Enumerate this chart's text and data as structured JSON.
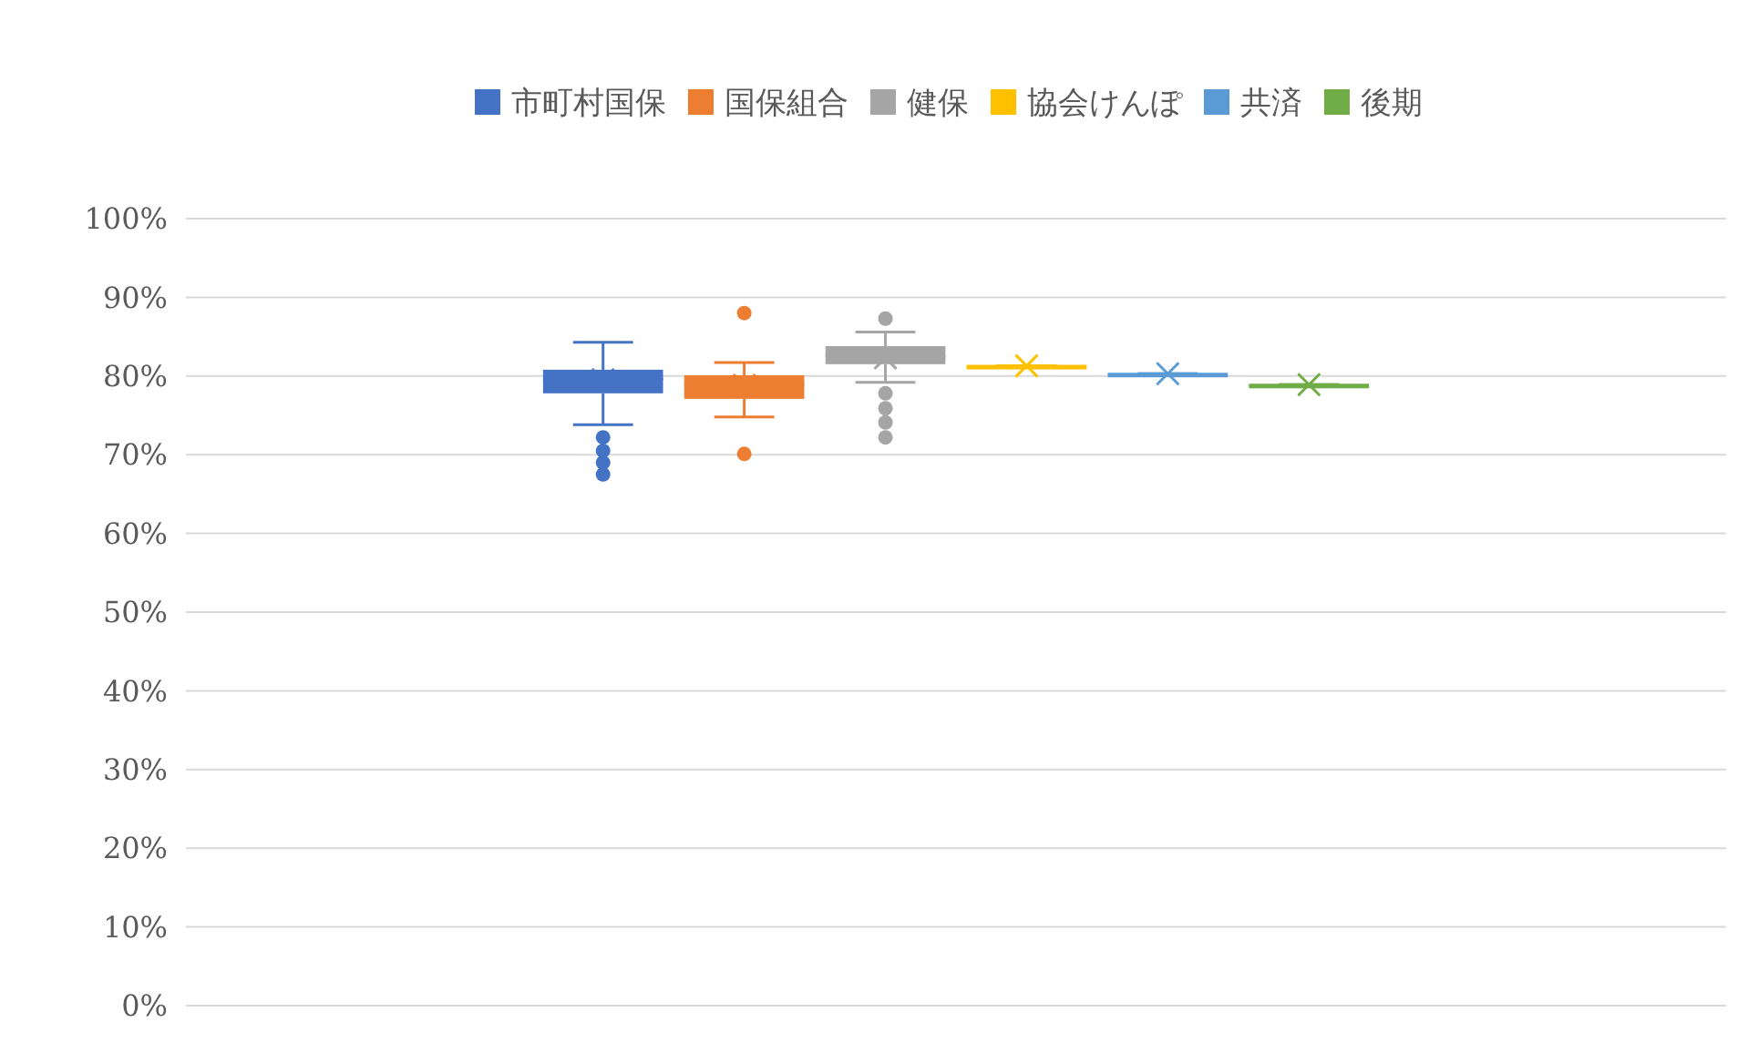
{
  "chart_data": {
    "type": "box",
    "categories": [
      null
    ],
    "series": [
      {
        "name": "市町村国保",
        "color": "#4472c4",
        "boxes": [
          {
            "low": 73.8,
            "q1": 77.8,
            "median": 79.6,
            "q3": 80.8,
            "high": 84.3,
            "mean": 79.5,
            "outliers": [
              72.2,
              70.5,
              69,
              67.5
            ]
          }
        ]
      },
      {
        "name": "国保組合",
        "color": "#ed7d31",
        "boxes": [
          {
            "low": 74.8,
            "q1": 77.1,
            "median": 78.9,
            "q3": 80.1,
            "high": 81.7,
            "mean": 78.8,
            "outliers": [
              88,
              70.1
            ]
          }
        ]
      },
      {
        "name": "健保",
        "color": "#a5a5a5",
        "boxes": [
          {
            "low": 79.2,
            "q1": 81.5,
            "median": 82.5,
            "q3": 83.8,
            "high": 85.6,
            "mean": 82.3,
            "outliers": [
              87.3,
              77.8,
              75.9,
              74.1,
              72.2
            ]
          }
        ]
      },
      {
        "name": "協会けんぽ",
        "color": "#ffc000",
        "boxes": [
          {
            "low": 81.3,
            "q1": 81.3,
            "median": 81.3,
            "q3": 81.3,
            "high": 81.3,
            "mean": 81.3
          }
        ]
      },
      {
        "name": "共済",
        "color": "#5b9bd5",
        "boxes": [
          {
            "low": 80.3,
            "q1": 80.3,
            "median": 80.3,
            "q3": 80.3,
            "high": 80.3,
            "mean": 80.3
          }
        ]
      },
      {
        "name": "後期",
        "color": "#70ad47",
        "boxes": [
          {
            "low": 78.9,
            "q1": 78.9,
            "median": 78.9,
            "q3": 78.9,
            "high": 78.9,
            "mean": 78.9
          }
        ]
      }
    ],
    "ylim": [
      0,
      100
    ],
    "yticks": [
      {
        "value": 0,
        "label": "0%"
      },
      {
        "value": 10,
        "label": "10%"
      },
      {
        "value": 20,
        "label": "20%"
      },
      {
        "value": 30,
        "label": "30%"
      },
      {
        "value": 40,
        "label": "40%"
      },
      {
        "value": 50,
        "label": "50%"
      },
      {
        "value": 60,
        "label": "60%"
      },
      {
        "value": 70,
        "label": "70%"
      },
      {
        "value": 80,
        "label": "80%"
      },
      {
        "value": 90,
        "label": "90%"
      },
      {
        "value": 100,
        "label": "100%"
      }
    ],
    "grid": "y",
    "legend": "top"
  }
}
